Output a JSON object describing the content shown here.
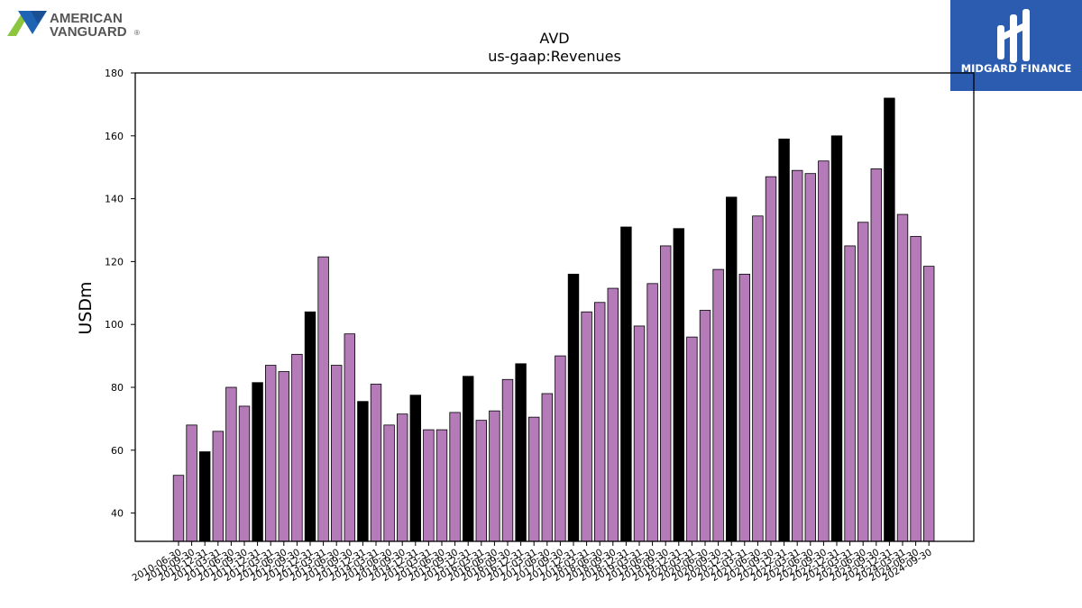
{
  "logo_left": {
    "line1": "AMERICAN",
    "line2": "VANGUARD",
    "reg": "®"
  },
  "logo_right": {
    "text": "MIDGARD FINANCE"
  },
  "chart_data": {
    "type": "bar",
    "title": "AVD",
    "subtitle": "us-gaap:Revenues",
    "ylabel": "USDm",
    "xlabel": "",
    "ylim": [
      31,
      180
    ],
    "yticks": [
      40,
      60,
      80,
      100,
      120,
      140,
      160,
      180
    ],
    "grid": false,
    "colors": {
      "quarter": "#b57bb9",
      "annual": "#000000"
    },
    "categories": [
      "2010-06-30",
      "2010-09-30",
      "2010-12-31",
      "2011-03-31",
      "2011-06-30",
      "2011-09-30",
      "2011-12-31",
      "2012-03-31",
      "2012-06-30",
      "2012-09-30",
      "2012-12-31",
      "2013-03-31",
      "2013-06-30",
      "2013-09-30",
      "2013-12-31",
      "2014-03-31",
      "2014-06-30",
      "2014-09-30",
      "2014-12-31",
      "2015-03-31",
      "2015-06-30",
      "2015-09-30",
      "2015-12-31",
      "2016-03-31",
      "2016-06-30",
      "2016-09-30",
      "2016-12-31",
      "2017-03-31",
      "2017-06-30",
      "2017-09-30",
      "2017-12-31",
      "2018-03-31",
      "2018-06-30",
      "2018-09-30",
      "2018-12-31",
      "2019-03-31",
      "2019-06-30",
      "2019-09-30",
      "2019-12-31",
      "2020-03-31",
      "2020-06-30",
      "2020-09-30",
      "2020-12-31",
      "2021-03-31",
      "2021-06-30",
      "2021-09-30",
      "2021-12-31",
      "2022-03-31",
      "2022-06-30",
      "2022-09-30",
      "2022-12-31",
      "2023-03-31",
      "2023-06-30",
      "2023-09-30",
      "2023-12-31",
      "2024-03-31",
      "2024-06-30",
      "2024-09-30"
    ],
    "values": [
      52,
      68,
      59.5,
      66,
      80,
      74,
      81.5,
      87,
      85,
      90.5,
      104,
      121.5,
      87,
      97,
      75.5,
      81,
      68,
      71.5,
      77.5,
      66.5,
      66.5,
      72,
      83.5,
      69.5,
      72.5,
      82.5,
      87.5,
      70.5,
      78,
      90,
      116,
      104,
      107,
      111.5,
      131,
      99.5,
      113,
      125,
      130.5,
      96,
      104.5,
      117.5,
      140.5,
      116,
      134.5,
      147,
      159,
      149,
      148,
      152,
      160,
      125,
      132.5,
      149.5,
      172,
      135,
      128,
      118.5
    ],
    "annual_flags": [
      0,
      0,
      1,
      0,
      0,
      0,
      1,
      0,
      0,
      0,
      1,
      0,
      0,
      0,
      1,
      0,
      0,
      0,
      1,
      0,
      0,
      0,
      1,
      0,
      0,
      0,
      1,
      0,
      0,
      0,
      1,
      0,
      0,
      0,
      1,
      0,
      0,
      0,
      1,
      0,
      0,
      0,
      1,
      0,
      0,
      0,
      1,
      0,
      0,
      0,
      1,
      0,
      0,
      0,
      1,
      0,
      0,
      0
    ]
  }
}
